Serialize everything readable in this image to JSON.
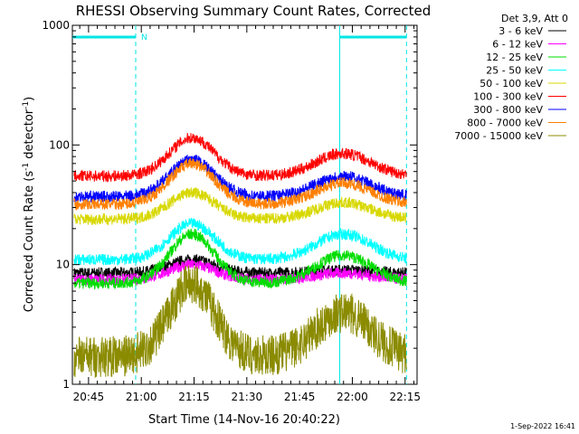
{
  "chart_data": {
    "type": "line",
    "title": "RHESSI Observing Summary Count Rates, Corrected",
    "xlabel": "Start Time (14-Nov-16 20:40:22)",
    "ylabel_main": "Corrected Count Rate (s",
    "ylabel_sup1": "-1",
    "ylabel_mid": " detector",
    "ylabel_sup2": "-1",
    "ylabel_end": ")",
    "y_scale": "log",
    "ylim": [
      1,
      1000
    ],
    "xlim_minutes": [
      0,
      98
    ],
    "y_ticks": [
      "1",
      "10",
      "100",
      "1000"
    ],
    "x_ticks": [
      {
        "minute": 4.6,
        "label": "20:45"
      },
      {
        "minute": 19.6,
        "label": "21:00"
      },
      {
        "minute": 34.6,
        "label": "21:15"
      },
      {
        "minute": 49.6,
        "label": "21:30"
      },
      {
        "minute": 64.6,
        "label": "21:45"
      },
      {
        "minute": 79.6,
        "label": "22:00"
      },
      {
        "minute": 94.6,
        "label": "22:15"
      }
    ],
    "legend_header": "Det 3,9, Att 0",
    "series": [
      {
        "name": "3 - 6 keV",
        "color": "#000000",
        "base": 8.5,
        "peak1": 11,
        "peak2": 9
      },
      {
        "name": "6 - 12 keV",
        "color": "#ff00ff",
        "base": 7.5,
        "peak1": 10,
        "peak2": 8.5
      },
      {
        "name": "12 - 25 keV",
        "color": "#00dd00",
        "base": 7,
        "peak1": 18,
        "peak2": 12
      },
      {
        "name": "25 - 50 keV",
        "color": "#00ffff",
        "base": 11,
        "peak1": 22,
        "peak2": 18
      },
      {
        "name": "50 - 100 keV",
        "color": "#d8d800",
        "base": 24,
        "peak1": 40,
        "peak2": 33
      },
      {
        "name": "100 - 300 keV",
        "color": "#ff0000",
        "base": 55,
        "peak1": 115,
        "peak2": 85
      },
      {
        "name": "300 - 800 keV",
        "color": "#0000ff",
        "base": 37,
        "peak1": 75,
        "peak2": 55
      },
      {
        "name": "800 - 7000 keV",
        "color": "#ff8000",
        "base": 32,
        "peak1": 70,
        "peak2": 48
      },
      {
        "name": "7000 - 15000 keV",
        "color": "#8b8b00",
        "base": 1.7,
        "peak1": 7,
        "peak2": 4
      }
    ],
    "peak1_minute": 34,
    "peak2_minute": 77,
    "night_intervals_minutes": [
      [
        0,
        18
      ],
      [
        76,
        95
      ]
    ],
    "saa_flag": "N",
    "timestamp": "1-Sep-2022 16:41"
  }
}
